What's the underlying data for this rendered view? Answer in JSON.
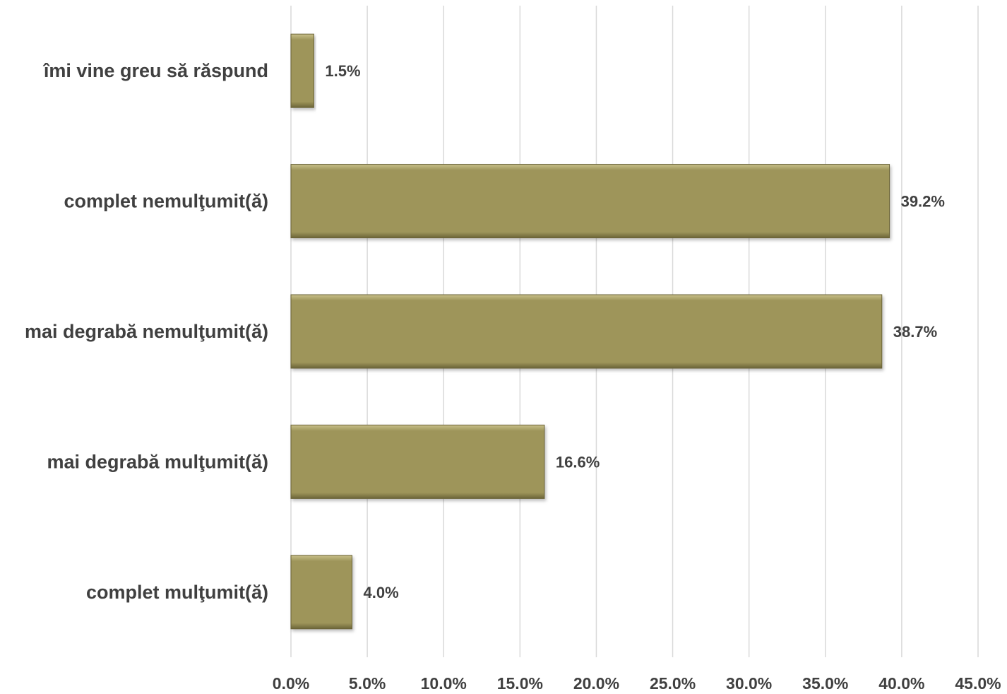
{
  "chart_data": {
    "type": "bar",
    "orientation": "horizontal",
    "title": "",
    "xlabel": "",
    "ylabel": "",
    "categories": [
      "îmi vine greu să răspund",
      "complet nemulţumit(ă)",
      "mai degrabă nemulţumit(ă)",
      "mai degrabă mulţumit(ă)",
      "complet mulţumit(ă)"
    ],
    "values": [
      1.5,
      39.2,
      38.7,
      16.6,
      4.0
    ],
    "data_labels": [
      "1.5%",
      "39.2%",
      "38.7%",
      "16.6%",
      "4.0%"
    ],
    "xlim": [
      0,
      45
    ],
    "x_ticks": [
      0,
      5,
      10,
      15,
      20,
      25,
      30,
      35,
      40,
      45
    ],
    "x_tick_labels": [
      "0.0%",
      "5.0%",
      "10.0%",
      "15.0%",
      "20.0%",
      "25.0%",
      "30.0%",
      "35.0%",
      "40.0%",
      "45.0%"
    ],
    "grid": "vertical",
    "legend": "none",
    "colors": {
      "bar": "#9e955a",
      "bar_highlight": "#c8c08a",
      "bar_shadow": "#6b6438",
      "grid": "#d9d9d9",
      "text": "#404040"
    }
  }
}
